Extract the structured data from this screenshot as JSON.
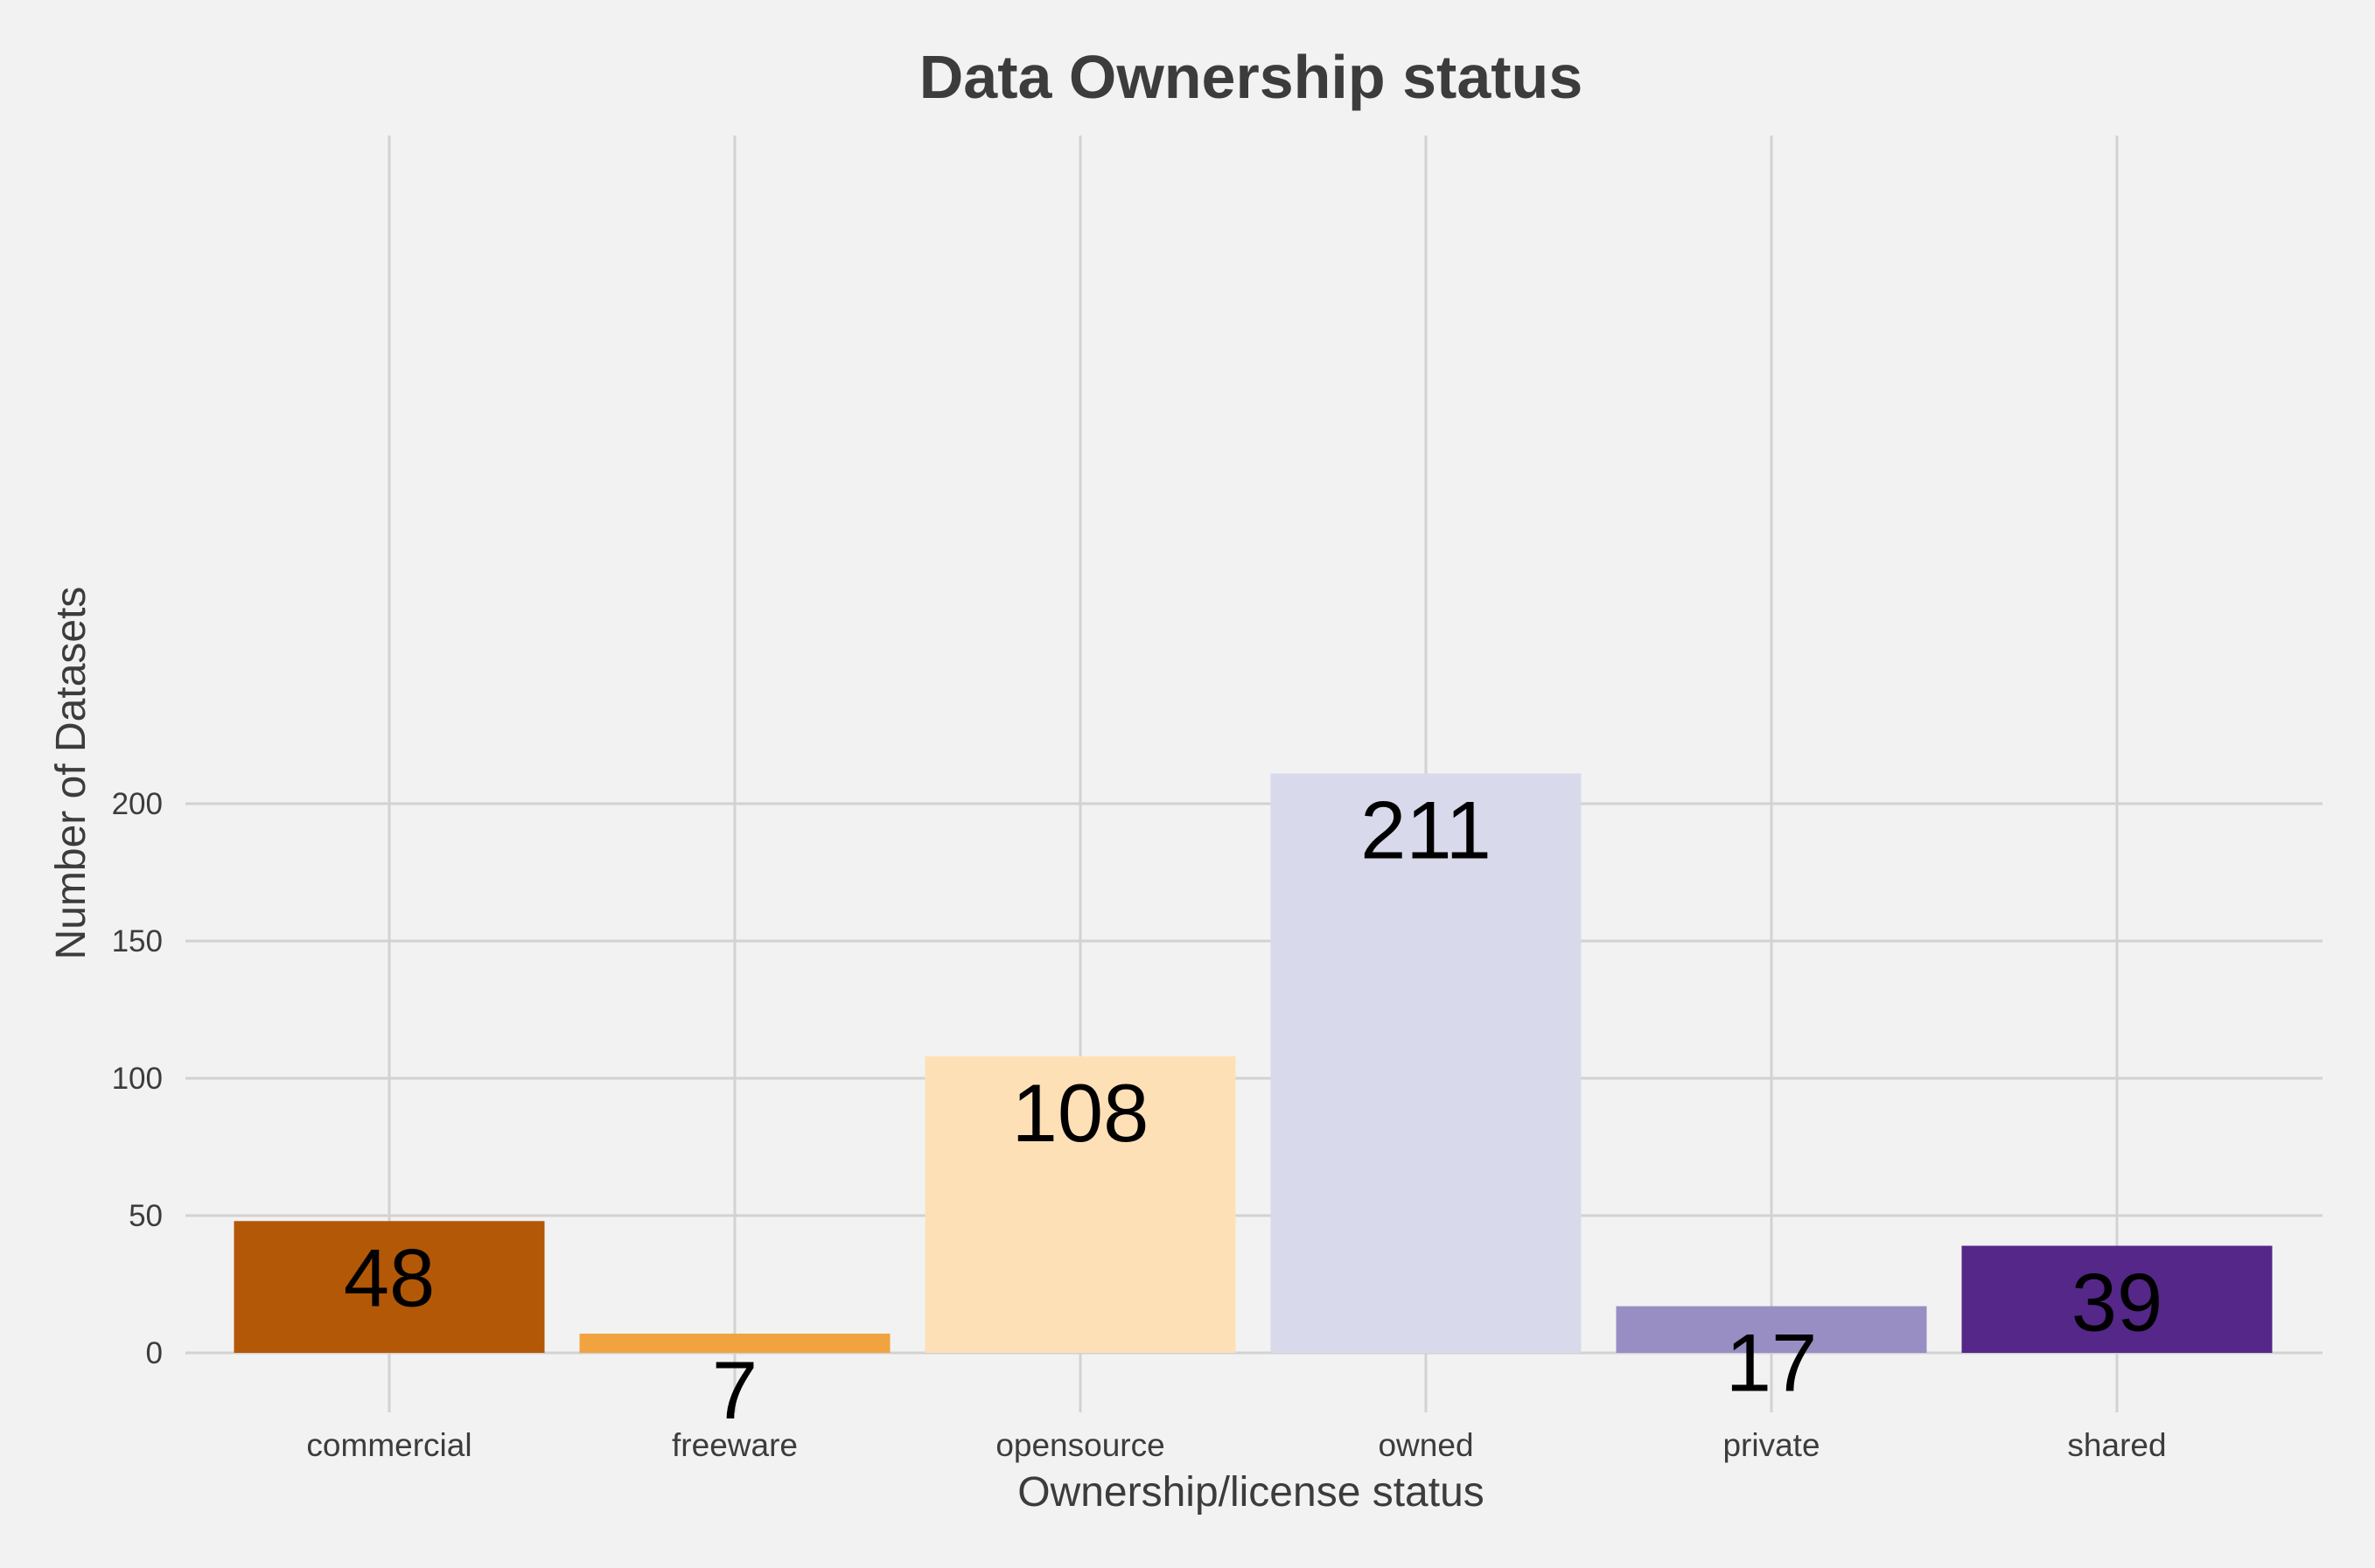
{
  "chart_data": {
    "type": "bar",
    "title": "Data Ownership status",
    "xlabel": "Ownership/license status",
    "ylabel": "Number of Datasets",
    "categories": [
      "commercial",
      "freeware",
      "opensource",
      "owned",
      "private",
      "shared"
    ],
    "values": [
      48,
      7,
      108,
      211,
      17,
      39
    ],
    "data_labels": [
      "48",
      "7",
      "108",
      "211",
      "17",
      "39"
    ],
    "colors": [
      "#b35806",
      "#f1a340",
      "#fee0b6",
      "#d8daeb",
      "#998ec3",
      "#542788"
    ],
    "yticks": [
      0,
      50,
      100,
      150,
      200
    ],
    "ytick_labels": [
      "0",
      "50",
      "100",
      "150",
      "200"
    ],
    "ylim": [
      0,
      221
    ],
    "grid": true,
    "legend": "none",
    "background": "#f2f2f2"
  }
}
